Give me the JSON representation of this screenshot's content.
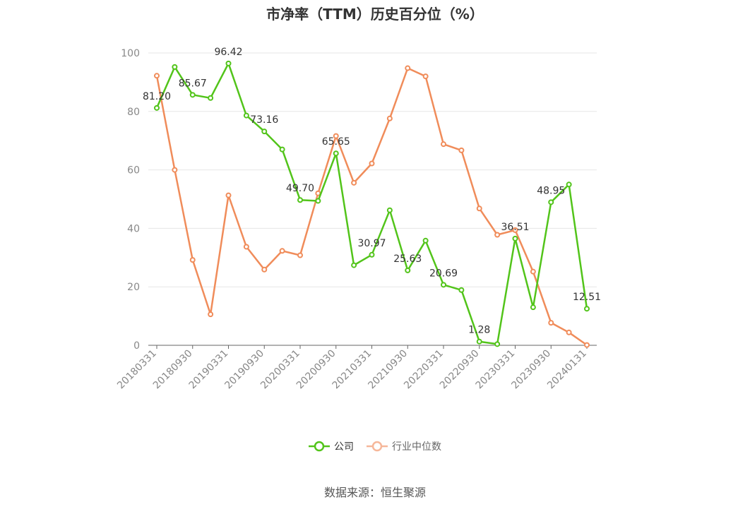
{
  "title": "市净率（TTM）历史百分位（%）",
  "legend": {
    "company": "公司",
    "industry": "行业中位数"
  },
  "source": "数据来源：恒生聚源",
  "colors": {
    "company": "#52c41a",
    "industry": "#f08c5a",
    "grid": "#e6e6e6",
    "axis": "#666666"
  },
  "chart_data": {
    "type": "line",
    "title": "市净率（TTM）历史百分位（%）",
    "ylim": [
      0,
      100
    ],
    "yticks": [
      0,
      20,
      40,
      60,
      80,
      100
    ],
    "x": [
      "20180331",
      "20180630",
      "20180930",
      "20181231",
      "20190331",
      "20190630",
      "20190930",
      "20191231",
      "20200331",
      "20200630",
      "20200930",
      "20201231",
      "20210331",
      "20210630",
      "20210930",
      "20211231",
      "20220331",
      "20220630",
      "20220930",
      "20221231",
      "20230331",
      "20230630",
      "20230930",
      "20231231",
      "20240131"
    ],
    "xtick_labels": [
      "20180331",
      "20180930",
      "20190331",
      "20190930",
      "20200331",
      "20200930",
      "20210331",
      "20210930",
      "20220331",
      "20220930",
      "20230331",
      "20230930",
      "20240131"
    ],
    "series": [
      {
        "name": "公司",
        "values": [
          81.2,
          95.2,
          85.67,
          84.6,
          96.42,
          78.6,
          73.16,
          67.0,
          49.7,
          49.4,
          65.65,
          27.4,
          30.97,
          46.2,
          25.63,
          35.8,
          20.69,
          18.9,
          1.28,
          0.4,
          36.51,
          13.0,
          48.95,
          55.0,
          12.51
        ],
        "labels": [
          "81.20",
          "",
          "85.67",
          "",
          "96.42",
          "",
          "73.16",
          "",
          "49.70",
          "",
          "65.65",
          "",
          "30.97",
          "",
          "25.63",
          "",
          "20.69",
          "",
          "1.28",
          "",
          "36.51",
          "",
          "48.95",
          "",
          "12.51"
        ]
      },
      {
        "name": "行业中位数",
        "values": [
          92.2,
          60.0,
          29.2,
          10.6,
          51.3,
          33.7,
          25.9,
          32.3,
          30.8,
          52.0,
          71.6,
          55.6,
          62.2,
          77.6,
          94.8,
          92.0,
          68.8,
          66.7,
          46.8,
          37.8,
          39.4,
          25.2,
          7.7,
          4.4,
          0.1
        ]
      }
    ],
    "grid": true,
    "legend_position": "bottom"
  }
}
